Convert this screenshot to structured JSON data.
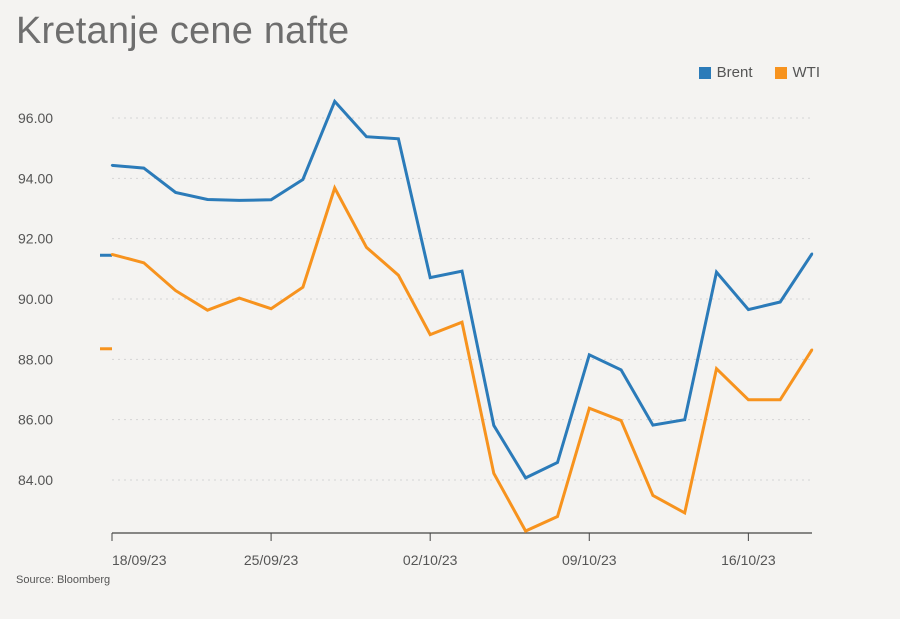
{
  "title": "Kretanje cene nafte",
  "source": "Source: Bloomberg",
  "colors": {
    "brent": "#2b7bb9",
    "wti": "#f7931e",
    "grid": "#d5d5d5",
    "axis": "#444444"
  },
  "chart_data": {
    "type": "line",
    "title": "Kretanje cene nafte",
    "xlabel": "",
    "ylabel": "",
    "ylim": [
      82.3,
      97.5
    ],
    "yticks": [
      "84.00",
      "86.00",
      "88.00",
      "90.00",
      "92.00",
      "94.00",
      "96.00"
    ],
    "ytick_values": [
      84,
      86,
      88,
      90,
      92,
      94,
      96
    ],
    "xtick_labels": [
      "18/09/23",
      "25/09/23",
      "02/10/23",
      "09/10/23",
      "16/10/23"
    ],
    "xtick_indices": [
      0,
      5,
      10,
      15,
      20
    ],
    "x": [
      "18/09/23",
      "19/09/23",
      "20/09/23",
      "21/09/23",
      "22/09/23",
      "25/09/23",
      "26/09/23",
      "27/09/23",
      "28/09/23",
      "29/09/23",
      "02/10/23",
      "03/10/23",
      "04/10/23",
      "05/10/23",
      "06/10/23",
      "09/10/23",
      "10/10/23",
      "11/10/23",
      "12/10/23",
      "13/10/23",
      "16/10/23",
      "17/10/23",
      "18/10/23"
    ],
    "grid": true,
    "legend_position": "top-right",
    "series": [
      {
        "name": "Brent",
        "color": "#2b7bb9",
        "values": [
          94.43,
          94.34,
          93.53,
          93.3,
          93.27,
          93.29,
          93.96,
          96.55,
          95.38,
          95.31,
          90.71,
          90.92,
          85.81,
          84.07,
          84.58,
          88.15,
          87.65,
          85.82,
          86.0,
          90.89,
          89.65,
          89.9,
          91.5
        ]
      },
      {
        "name": "WTI",
        "color": "#f7931e",
        "values": [
          91.48,
          91.2,
          90.28,
          89.63,
          90.03,
          89.68,
          90.39,
          93.68,
          91.71,
          90.79,
          88.82,
          89.23,
          84.22,
          82.31,
          82.79,
          86.38,
          85.97,
          83.49,
          82.91,
          87.69,
          86.66,
          86.66,
          88.32
        ]
      }
    ],
    "start_markers": {
      "Brent": 91.45,
      "WTI": 88.35
    }
  }
}
